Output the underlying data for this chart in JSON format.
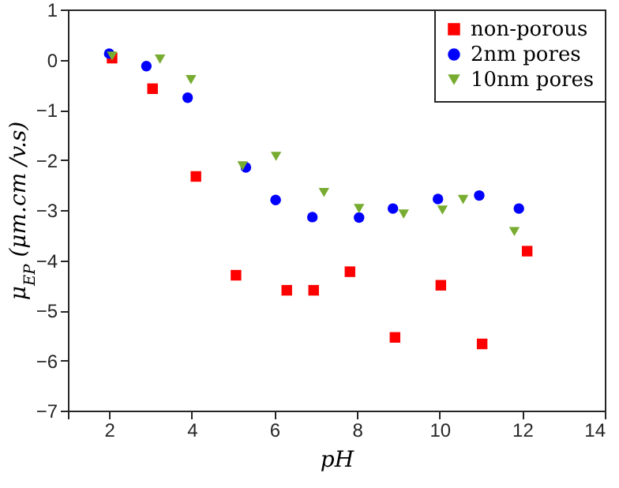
{
  "chart_data": {
    "type": "scatter",
    "xlabel": "pH",
    "ylabel": "μ$_{EP}$ (μm.cm /v.s)",
    "xlim": [
      1,
      14
    ],
    "ylim": [
      -7,
      1
    ],
    "xticks": [
      {
        "value": 1,
        "label": null
      },
      2,
      4,
      6,
      8,
      10,
      12,
      14
    ],
    "yticks": [
      -7,
      -6,
      -5,
      -4,
      -3,
      -2,
      -1,
      0,
      1
    ],
    "grid": false,
    "legend": "top right",
    "series": [
      {
        "name": "non-porous",
        "color": "#ff0000",
        "marker": "square",
        "x": [
          2.07,
          3.05,
          4.1,
          5.07,
          6.3,
          6.95,
          7.83,
          8.92,
          10.03,
          11.03,
          12.12
        ],
        "values": [
          0.03,
          -0.58,
          -2.33,
          -4.3,
          -4.6,
          -4.6,
          -4.23,
          -5.54,
          -4.5,
          -5.67,
          -3.82
        ]
      },
      {
        "name": "2nm pores",
        "color": "#0000ff",
        "marker": "circle",
        "x": [
          2.0,
          2.9,
          3.9,
          5.31,
          6.03,
          6.92,
          8.05,
          8.87,
          9.96,
          10.96,
          11.92
        ],
        "values": [
          0.12,
          -0.13,
          -0.76,
          -2.15,
          -2.8,
          -3.14,
          -3.15,
          -2.97,
          -2.78,
          -2.71,
          -2.97
        ]
      },
      {
        "name": "10nm pores",
        "color": "#77ac30",
        "marker": "triangle",
        "x": [
          2.07,
          3.23,
          3.98,
          5.23,
          6.04,
          7.2,
          8.05,
          9.13,
          10.07,
          10.57,
          11.81
        ],
        "values": [
          0.07,
          0.01,
          -0.4,
          -2.12,
          -1.93,
          -2.65,
          -2.97,
          -3.08,
          -3.0,
          -2.79,
          -3.43
        ]
      }
    ]
  }
}
